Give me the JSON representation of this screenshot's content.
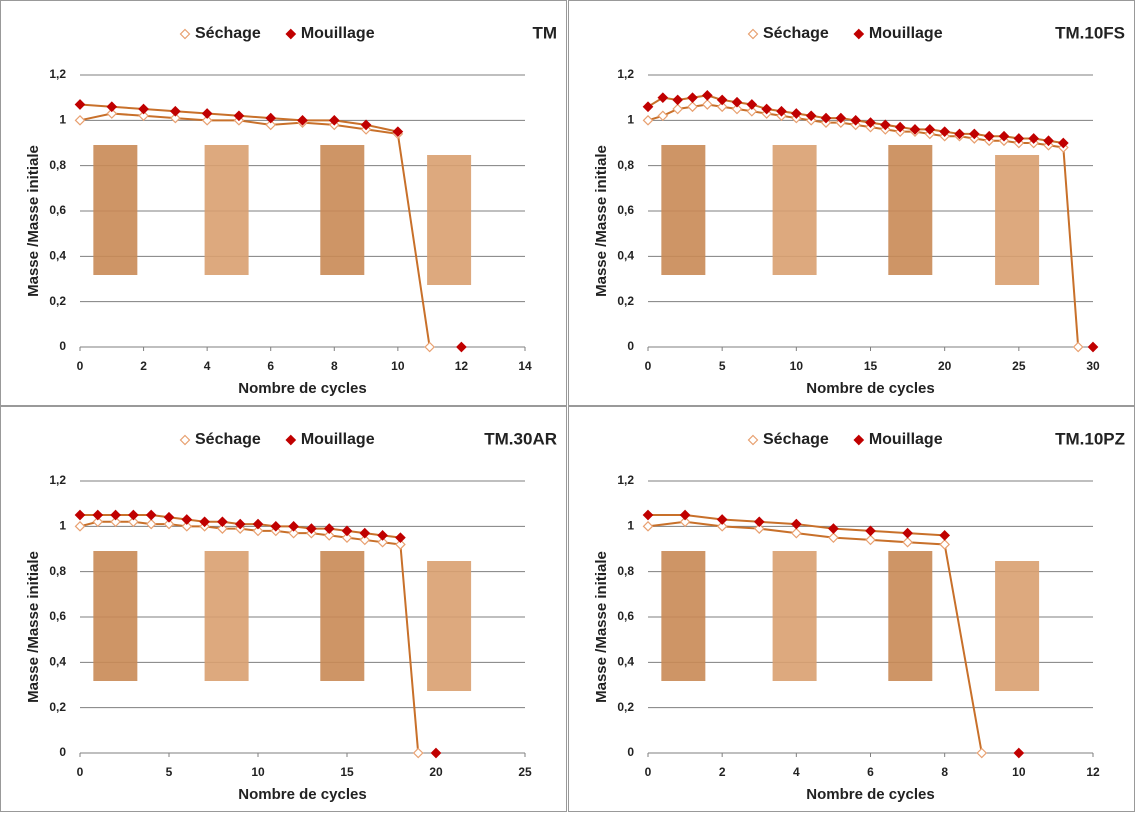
{
  "chart_data": [
    {
      "type": "line",
      "title": "TM",
      "x_label": "Nombre de cycles",
      "y_label": "Masse /Masse initiale",
      "x": [
        0,
        1,
        2,
        3,
        4,
        5,
        6,
        7,
        8,
        9,
        10,
        11,
        12
      ],
      "series": [
        {
          "name": "Séchage",
          "color": "#e8a070",
          "marker": "open",
          "values": [
            1.0,
            1.03,
            1.02,
            1.01,
            1.0,
            1.0,
            0.98,
            0.99,
            0.98,
            0.96,
            0.94,
            0,
            null
          ]
        },
        {
          "name": "Mouillage",
          "color": "#c00000",
          "marker": "filled",
          "values": [
            1.07,
            1.06,
            1.05,
            1.04,
            1.03,
            1.02,
            1.01,
            1.0,
            1.0,
            0.98,
            0.95,
            null,
            0
          ]
        }
      ],
      "line_color": "#c8702a",
      "grid": true,
      "xlim": [
        0,
        14
      ],
      "xticks": [
        0,
        2,
        4,
        6,
        8,
        10,
        12,
        14
      ],
      "ylim": [
        0,
        1.2
      ],
      "yticks": [
        0,
        {
          "value": 0.2,
          "label": "0,2"
        },
        {
          "value": 0.4,
          "label": "0,4"
        },
        {
          "value": 0.6,
          "label": "0,6"
        },
        {
          "value": 0.8,
          "label": "0,8"
        },
        1,
        {
          "value": 1.2,
          "label": "1,2"
        }
      ]
    },
    {
      "type": "line",
      "title": "TM.10FS",
      "x_label": "Nombre de cycles",
      "y_label": "Masse /Masse initiale",
      "x": [
        0,
        1,
        2,
        3,
        4,
        5,
        6,
        7,
        8,
        9,
        10,
        11,
        12,
        13,
        14,
        15,
        16,
        17,
        18,
        19,
        20,
        21,
        22,
        23,
        24,
        25,
        26,
        27,
        28,
        29,
        30
      ],
      "series": [
        {
          "name": "Séchage",
          "color": "#e8a070",
          "marker": "open",
          "values": [
            1.0,
            1.02,
            1.05,
            1.06,
            1.07,
            1.06,
            1.05,
            1.04,
            1.03,
            1.02,
            1.01,
            1.0,
            0.99,
            0.99,
            0.98,
            0.97,
            0.96,
            0.95,
            0.95,
            0.94,
            0.93,
            0.93,
            0.92,
            0.91,
            0.91,
            0.9,
            0.9,
            0.89,
            0.88,
            0,
            null
          ]
        },
        {
          "name": "Mouillage",
          "color": "#c00000",
          "marker": "filled",
          "values": [
            1.06,
            1.1,
            1.09,
            1.1,
            1.11,
            1.09,
            1.08,
            1.07,
            1.05,
            1.04,
            1.03,
            1.02,
            1.01,
            1.01,
            1.0,
            0.99,
            0.98,
            0.97,
            0.96,
            0.96,
            0.95,
            0.94,
            0.94,
            0.93,
            0.93,
            0.92,
            0.92,
            0.91,
            0.9,
            null,
            0
          ]
        }
      ],
      "line_color": "#c8702a",
      "grid": true,
      "xlim": [
        0,
        30
      ],
      "xticks": [
        0,
        5,
        10,
        15,
        20,
        25,
        30
      ],
      "ylim": [
        0,
        1.2
      ],
      "yticks": [
        0,
        {
          "value": 0.2,
          "label": "0,2"
        },
        {
          "value": 0.4,
          "label": "0,4"
        },
        {
          "value": 0.6,
          "label": "0,6"
        },
        {
          "value": 0.8,
          "label": "0,8"
        },
        1,
        {
          "value": 1.2,
          "label": "1,2"
        }
      ]
    },
    {
      "type": "line",
      "title": "TM.30AR",
      "x_label": "Nombre de cycles",
      "y_label": "Masse /Masse initiale",
      "x": [
        0,
        1,
        2,
        3,
        4,
        5,
        6,
        7,
        8,
        9,
        10,
        11,
        12,
        13,
        14,
        15,
        16,
        17,
        18,
        19,
        20
      ],
      "series": [
        {
          "name": "Séchage",
          "color": "#e8a070",
          "marker": "open",
          "values": [
            1.0,
            1.02,
            1.02,
            1.02,
            1.01,
            1.01,
            1.0,
            1.0,
            0.99,
            0.99,
            0.98,
            0.98,
            0.97,
            0.97,
            0.96,
            0.95,
            0.94,
            0.93,
            0.92,
            0,
            null
          ]
        },
        {
          "name": "Mouillage",
          "color": "#c00000",
          "marker": "filled",
          "values": [
            1.05,
            1.05,
            1.05,
            1.05,
            1.05,
            1.04,
            1.03,
            1.02,
            1.02,
            1.01,
            1.01,
            1.0,
            1.0,
            0.99,
            0.99,
            0.98,
            0.97,
            0.96,
            0.95,
            null,
            0
          ]
        }
      ],
      "line_color": "#c8702a",
      "grid": true,
      "xlim": [
        0,
        25
      ],
      "xticks": [
        0,
        5,
        10,
        15,
        20,
        25
      ],
      "ylim": [
        0,
        1.2
      ],
      "yticks": [
        0,
        {
          "value": 0.2,
          "label": "0,2"
        },
        {
          "value": 0.4,
          "label": "0,4"
        },
        {
          "value": 0.6,
          "label": "0,6"
        },
        {
          "value": 0.8,
          "label": "0,8"
        },
        1,
        {
          "value": 1.2,
          "label": "1,2"
        }
      ]
    },
    {
      "type": "line",
      "title": "TM.10PZ",
      "x_label": "Nombre de cycles",
      "y_label": "Masse /Masse initiale",
      "x": [
        0,
        1,
        2,
        3,
        4,
        5,
        6,
        7,
        8,
        9,
        10
      ],
      "series": [
        {
          "name": "Séchage",
          "color": "#e8a070",
          "marker": "open",
          "values": [
            1.0,
            1.02,
            1.0,
            0.99,
            0.97,
            0.95,
            0.94,
            0.93,
            0.92,
            0,
            null
          ]
        },
        {
          "name": "Mouillage",
          "color": "#c00000",
          "marker": "filled",
          "values": [
            1.05,
            1.05,
            1.03,
            1.02,
            1.01,
            0.99,
            0.98,
            0.97,
            0.96,
            null,
            0
          ]
        }
      ],
      "line_color": "#c8702a",
      "grid": true,
      "xlim": [
        0,
        12
      ],
      "xticks": [
        0,
        2,
        4,
        6,
        8,
        10,
        12
      ],
      "ylim": [
        0,
        1.2
      ],
      "yticks": [
        0,
        {
          "value": 0.2,
          "label": "0,2"
        },
        {
          "value": 0.4,
          "label": "0,4"
        },
        {
          "value": 0.6,
          "label": "0,6"
        },
        {
          "value": 0.8,
          "label": "0,8"
        },
        1,
        {
          "value": 1.2,
          "label": "1,2"
        }
      ]
    }
  ]
}
